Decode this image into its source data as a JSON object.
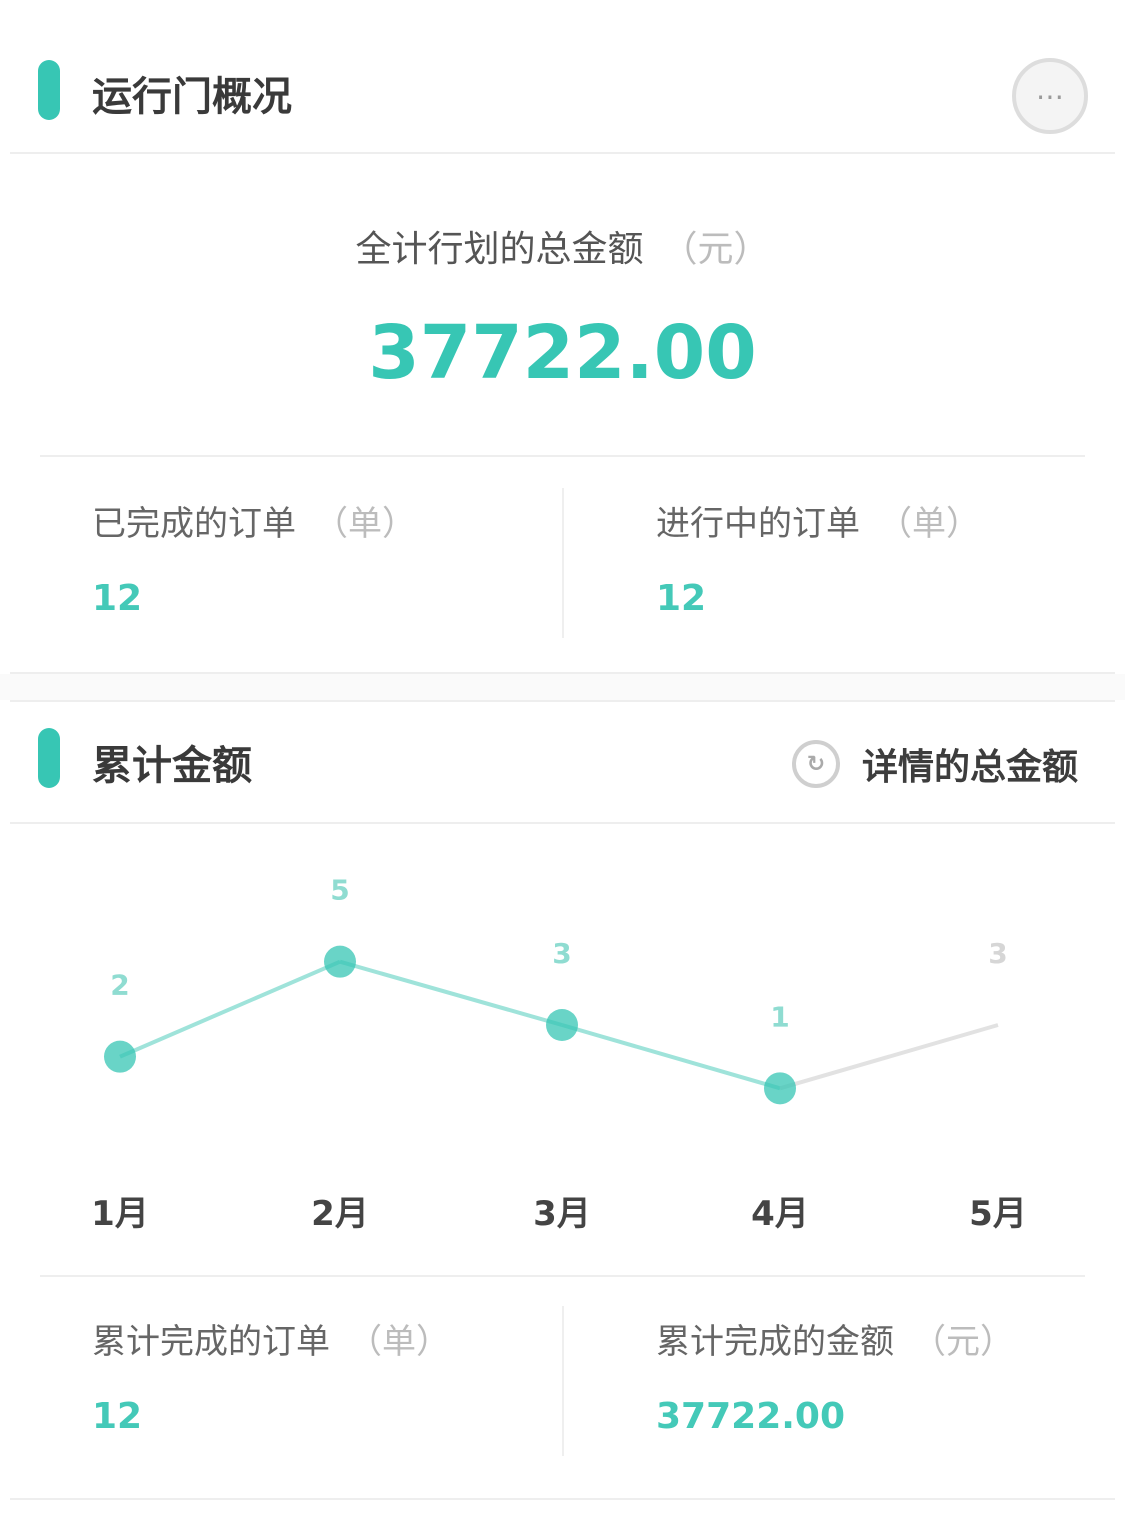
{
  "colors": {
    "accent": "#37c6b4",
    "line": "#9fe3da",
    "grid": "#eeeeee"
  },
  "section1": {
    "title": "运行门概况",
    "action_icon": "more-icon",
    "total_label": "全计行划的总金额",
    "total_unit": "（元）",
    "total_value": "37722.00",
    "stat_left": {
      "label": "已完成的订单",
      "unit": "（单）",
      "value": "12"
    },
    "stat_right": {
      "label": "进行中的订单",
      "unit": "（单）",
      "value": "12"
    }
  },
  "section2": {
    "title": "累计金额",
    "link_icon": "refresh-icon",
    "link_label": "详情的总金额",
    "stat_left": {
      "label": "累计完成的订单",
      "unit": "（单）",
      "value": "12"
    },
    "stat_right": {
      "label": "累计完成的金额",
      "unit": "（元）",
      "value": "37722.00"
    }
  },
  "chart_data": {
    "type": "line",
    "categories": [
      "1月",
      "2月",
      "3月",
      "4月",
      "5月"
    ],
    "values": [
      2,
      5,
      3,
      1,
      3
    ],
    "value_labels": [
      "2",
      "5",
      "3",
      "1",
      "3"
    ],
    "ylim": [
      0,
      6
    ],
    "grid": false,
    "legend": "none",
    "title": "",
    "xlabel": "",
    "ylabel": ""
  }
}
